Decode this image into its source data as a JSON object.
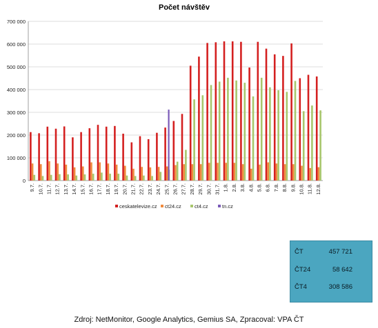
{
  "chart_data": {
    "type": "bar",
    "title": "Počet návštěv",
    "xlabel": "",
    "ylabel": "",
    "ylim": [
      0,
      700000
    ],
    "yticks": [
      0,
      100000,
      200000,
      300000,
      400000,
      500000,
      600000,
      700000
    ],
    "ytick_labels": [
      "0",
      "100 000",
      "200 000",
      "300 000",
      "400 000",
      "500 000",
      "600 000",
      "700 000"
    ],
    "grid": true,
    "legend_position": "bottom",
    "categories": [
      "9.7.",
      "10.7.",
      "11.7.",
      "12.7.",
      "13.7.",
      "14.7.",
      "15.7.",
      "16.7.",
      "17.7.",
      "18.7.",
      "19.7.",
      "20.7.",
      "21.7.",
      "22.7.",
      "23.7.",
      "24.7.",
      "25.7.",
      "26.7.",
      "27.7.",
      "28.7.",
      "29.7.",
      "30.7.",
      "31.7.",
      "1.8.",
      "2.8.",
      "3.8.",
      "4.8.",
      "5.8.",
      "6.8.",
      "7.8.",
      "8.8.",
      "9.8.",
      "10.8.",
      "11.8.",
      "12.8."
    ],
    "series": [
      {
        "name": "ceskatelevize.cz",
        "color": "#d42020",
        "values": [
          213000,
          208000,
          237000,
          228000,
          238000,
          190000,
          213000,
          230000,
          245000,
          237000,
          240000,
          206000,
          168000,
          195000,
          182000,
          210000,
          233000,
          262000,
          293000,
          505000,
          545000,
          605000,
          608000,
          612000,
          612000,
          610000,
          497000,
          610000,
          580000,
          555000,
          548000,
          603000,
          450000,
          465000,
          457721
        ]
      },
      {
        "name": "ct24.cz",
        "color": "#f08a3c",
        "values": [
          75000,
          72000,
          85000,
          75000,
          70000,
          58000,
          62000,
          80000,
          80000,
          75000,
          70000,
          65000,
          52000,
          60000,
          58000,
          60000,
          62000,
          68000,
          72000,
          72000,
          72000,
          78000,
          78000,
          78000,
          78000,
          72000,
          52000,
          70000,
          80000,
          75000,
          72000,
          72000,
          65000,
          55000,
          58642
        ]
      },
      {
        "name": "ct4.cz",
        "color": "#a8c66c",
        "values": [
          25000,
          20000,
          25000,
          28000,
          27000,
          22000,
          27000,
          30000,
          35000,
          30000,
          30000,
          22000,
          20000,
          22000,
          20000,
          38000,
          48000,
          83000,
          135000,
          357000,
          375000,
          420000,
          435000,
          452000,
          440000,
          430000,
          370000,
          452000,
          410000,
          397000,
          390000,
          438000,
          305000,
          330000,
          308586
        ]
      },
      {
        "name": "tn.cz",
        "color": "#7a5ab8",
        "values": [
          null,
          null,
          null,
          null,
          null,
          null,
          null,
          null,
          null,
          null,
          null,
          null,
          null,
          null,
          null,
          null,
          312000,
          null,
          null,
          null,
          null,
          null,
          null,
          null,
          null,
          null,
          null,
          null,
          null,
          null,
          null,
          null,
          null,
          null,
          null
        ]
      }
    ]
  },
  "summary": {
    "rows": [
      {
        "label": "ČT",
        "value": "457 721"
      },
      {
        "label": "ČT24",
        "value": "58 642"
      },
      {
        "label": "ČT4",
        "value": "308 586"
      }
    ]
  },
  "source_text": "Zdroj: NetMonitor, Google Analytics, Gemius SA, Zpracoval: VPA ČT"
}
